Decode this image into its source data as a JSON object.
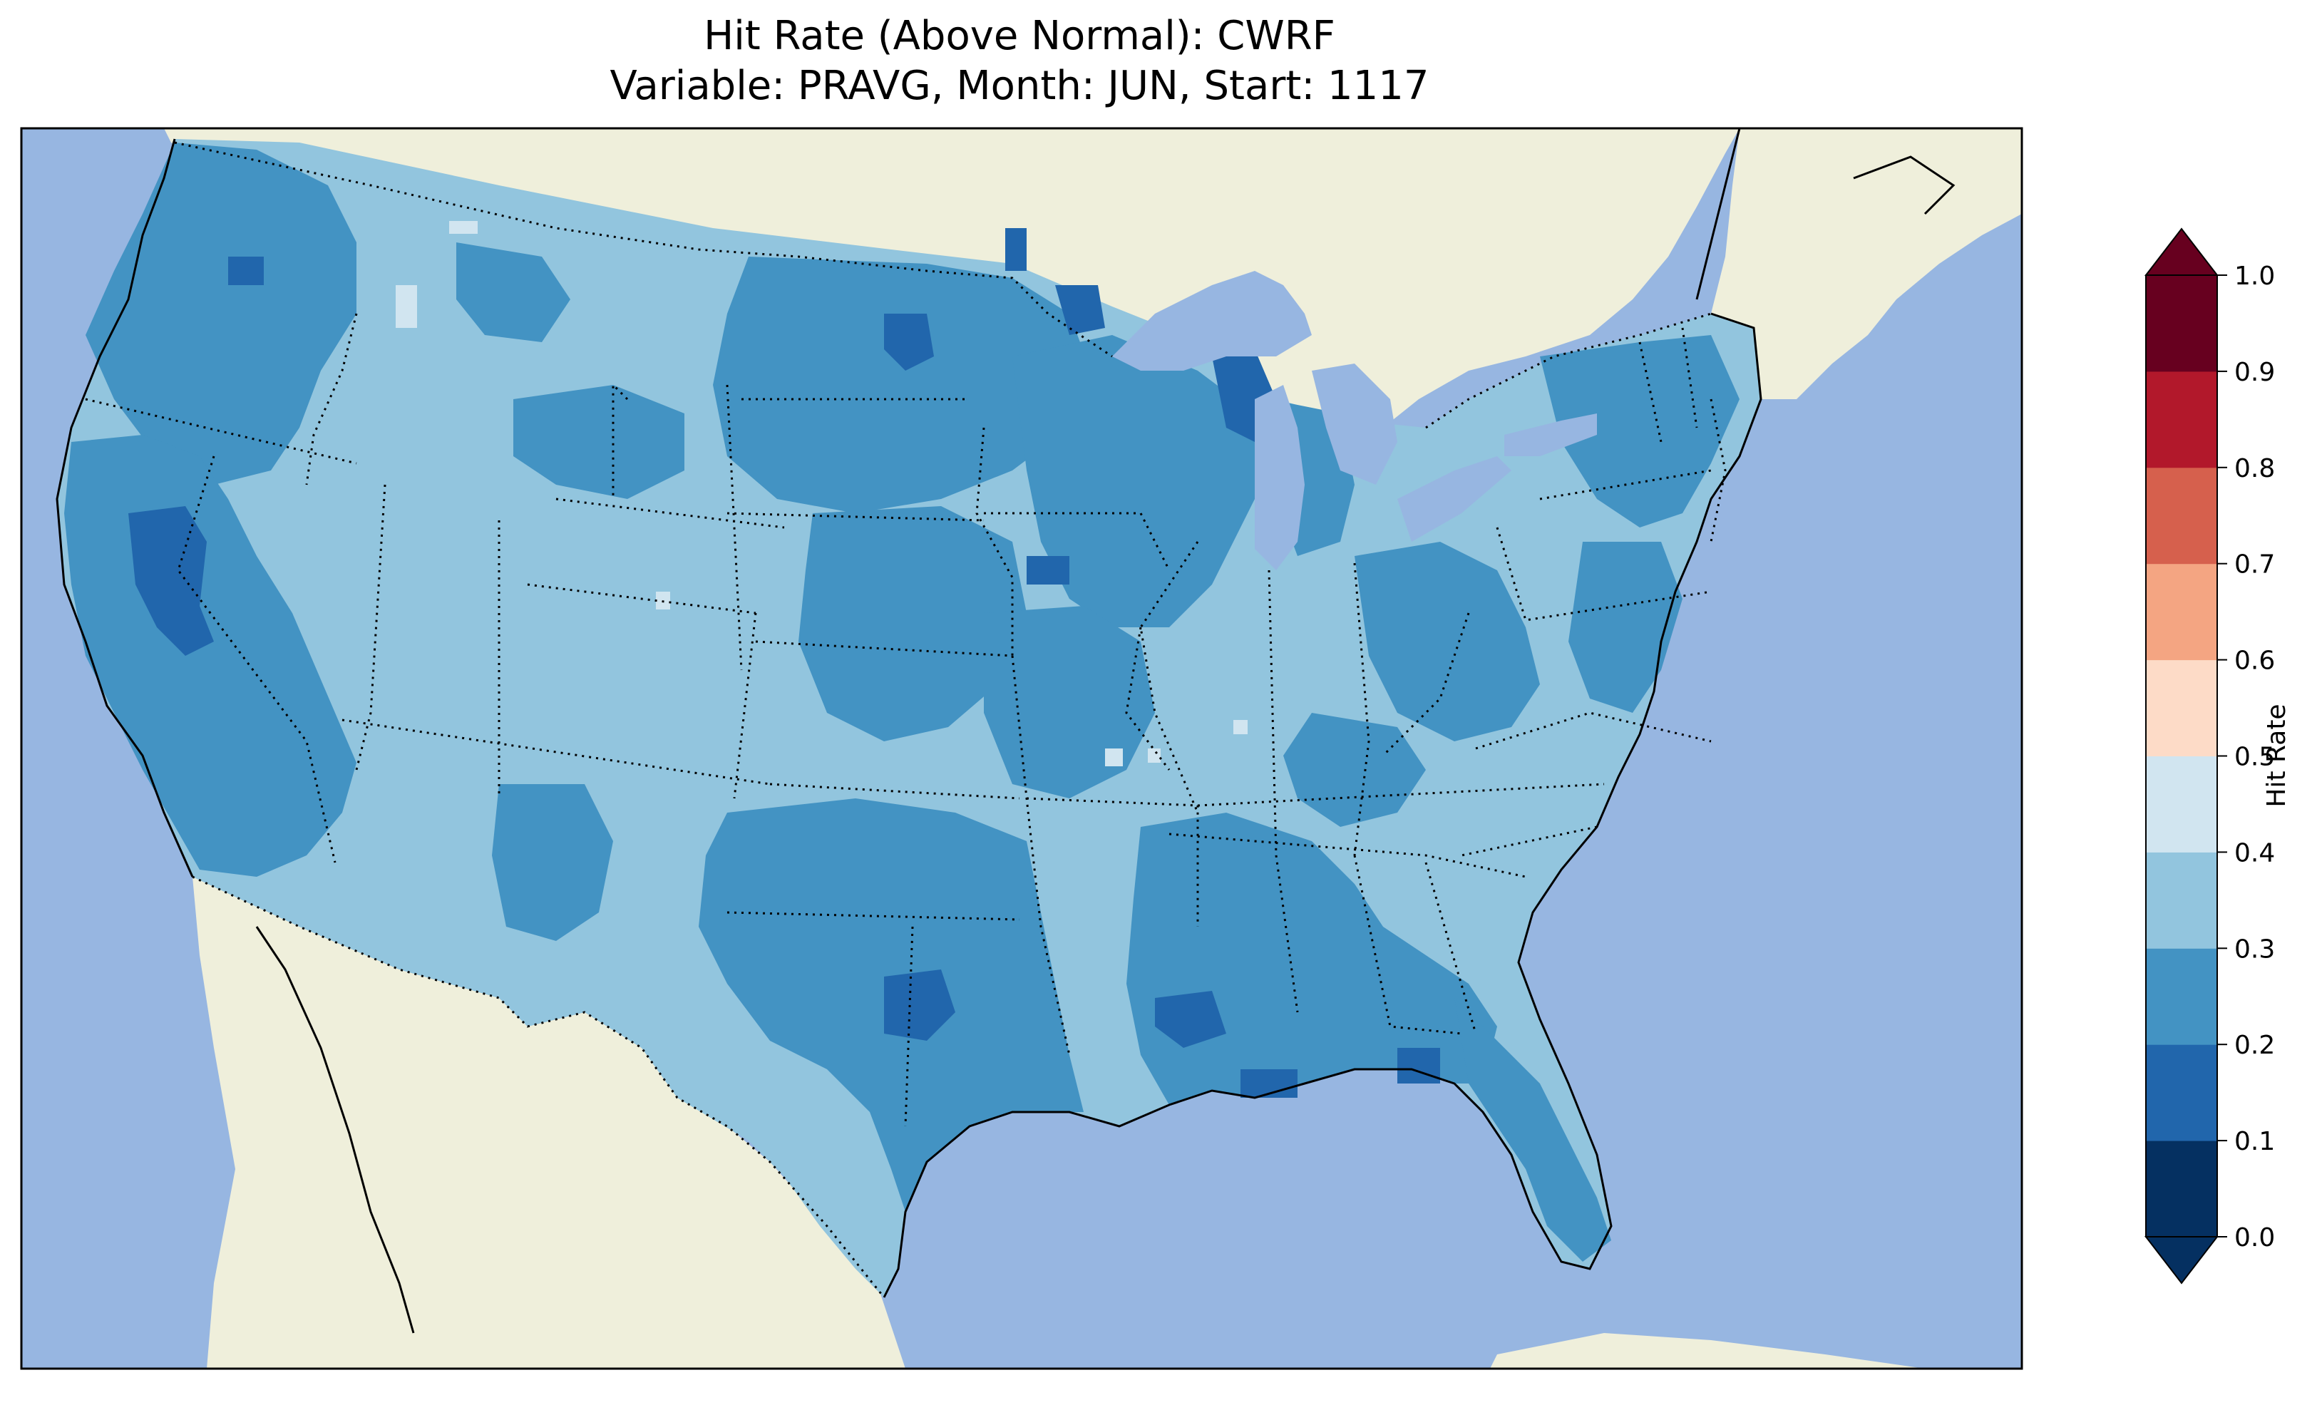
{
  "title": {
    "line1": "Hit Rate (Above Normal): CWRF",
    "line2": "Variable: PRAVG, Month: JUN, Start: 1117"
  },
  "map": {
    "region": "Contiguous United States",
    "ocean_color": "#97b6e1",
    "land_color": "#efefdb",
    "state_borders": "dotted",
    "dominant_bins": [
      "0.2-0.3",
      "0.3-0.4"
    ]
  },
  "colorbar": {
    "label": "Hit Rate",
    "ticks": [
      "0.0",
      "0.1",
      "0.2",
      "0.3",
      "0.4",
      "0.5",
      "0.6",
      "0.7",
      "0.8",
      "0.9",
      "1.0"
    ],
    "colors": [
      "#053061",
      "#2166ac",
      "#4393c3",
      "#92c5de",
      "#d1e5f0",
      "#fddbc7",
      "#f4a582",
      "#d6604d",
      "#b2182b",
      "#67001f"
    ],
    "extend": "both"
  }
}
